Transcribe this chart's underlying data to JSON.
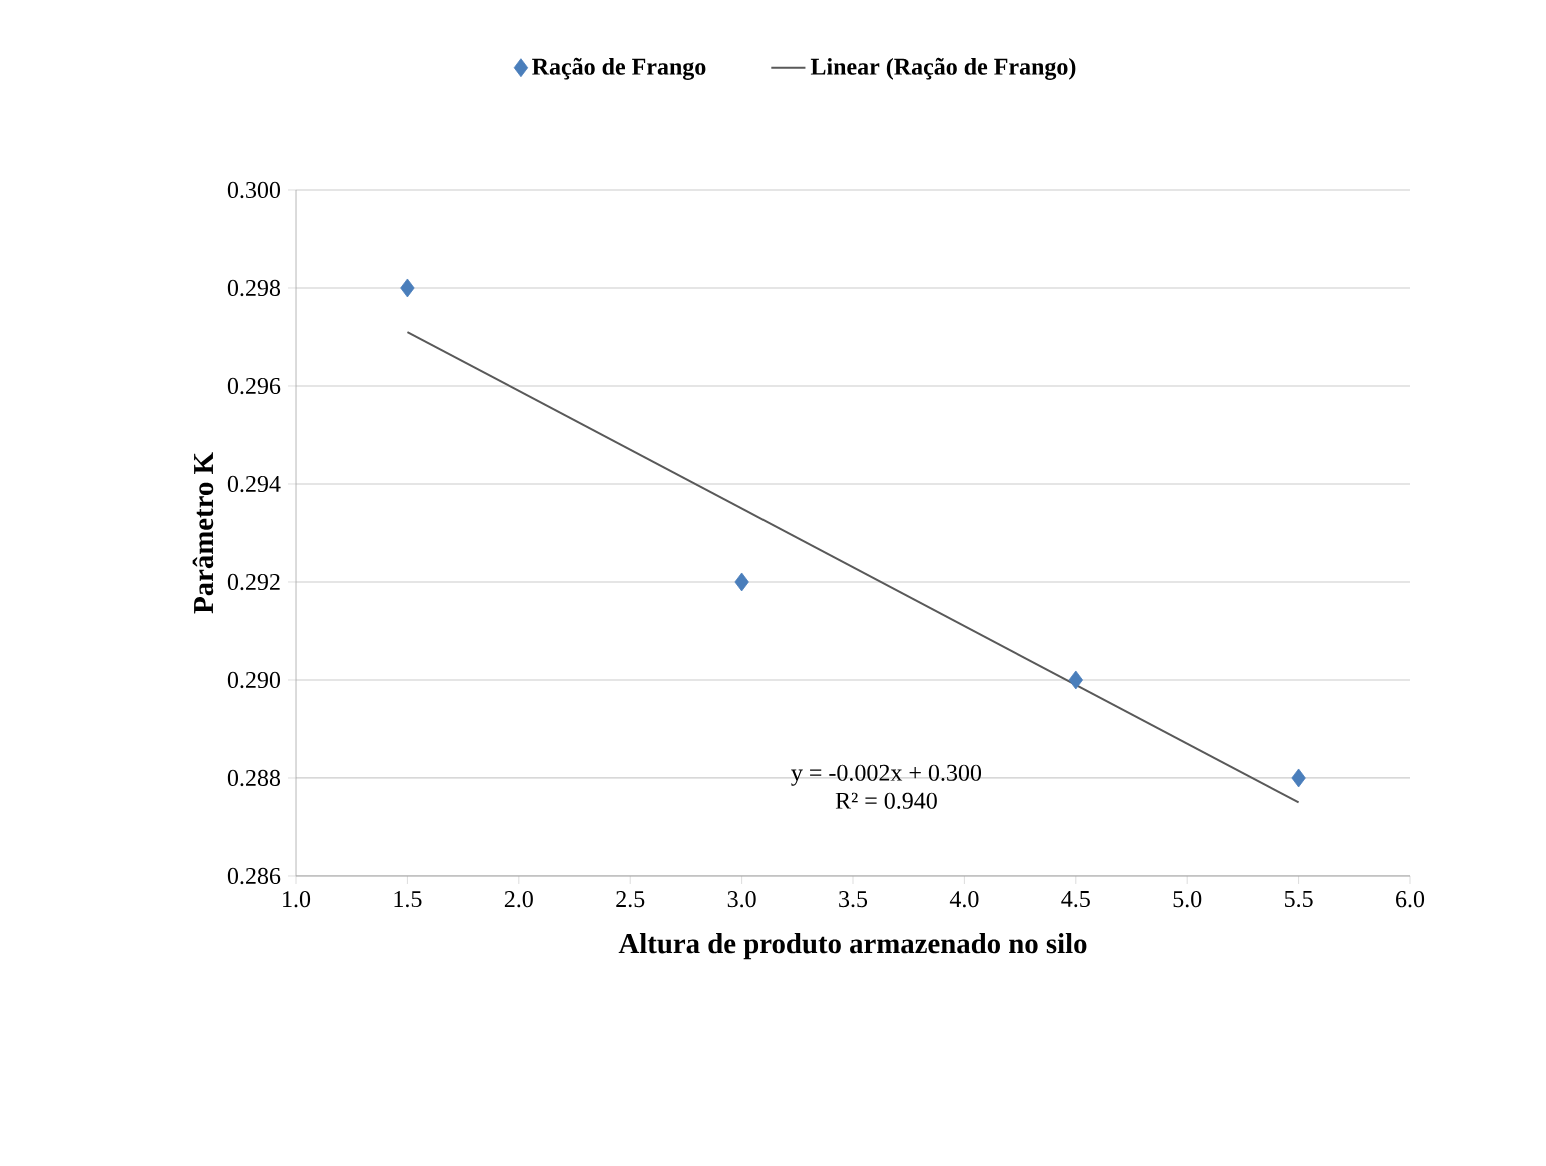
{
  "chart_data": {
    "type": "scatter",
    "xlabel": "Altura de produto armazenado no silo",
    "ylabel": "Parâmetro K",
    "series": [
      {
        "name": "Ração de Frango",
        "marker": "diamond",
        "color": "#4a7ebb",
        "x": [
          1.5,
          3.0,
          4.5,
          5.5
        ],
        "values": [
          0.298,
          0.292,
          0.29,
          0.288
        ]
      },
      {
        "name": "Linear (Ração de Frango)",
        "type": "line",
        "marker": "none",
        "line_style": "solid",
        "color": "#595959",
        "x": [
          1.5,
          5.5
        ],
        "values": [
          0.2971,
          0.2875
        ]
      }
    ],
    "xlim": [
      1,
      6
    ],
    "xticks": [
      {
        "value": 1,
        "label": "1.0"
      },
      {
        "value": 1.5,
        "label": "1.5"
      },
      {
        "value": 2,
        "label": "2.0"
      },
      {
        "value": 2.5,
        "label": "2.5"
      },
      {
        "value": 3,
        "label": "3.0"
      },
      {
        "value": 3.5,
        "label": "3.5"
      },
      {
        "value": 4,
        "label": "4.0"
      },
      {
        "value": 4.5,
        "label": "4.5"
      },
      {
        "value": 5,
        "label": "5.0"
      },
      {
        "value": 5.5,
        "label": "5.5"
      },
      {
        "value": 6,
        "label": "6.0"
      }
    ],
    "ylim": [
      0.286,
      0.3
    ],
    "yticks": [
      {
        "value": 0.286,
        "label": "0.286"
      },
      {
        "value": 0.288,
        "label": "0.288"
      },
      {
        "value": 0.29,
        "label": "0.290"
      },
      {
        "value": 0.292,
        "label": "0.292"
      },
      {
        "value": 0.294,
        "label": "0.294"
      },
      {
        "value": 0.296,
        "label": "0.296"
      },
      {
        "value": 0.298,
        "label": "0.298"
      },
      {
        "value": 0.3,
        "label": "0.300"
      }
    ],
    "grid": "y",
    "legend": "top",
    "annotations": [
      "y = -0.002x + 0.300",
      "R² = 0.940"
    ]
  }
}
